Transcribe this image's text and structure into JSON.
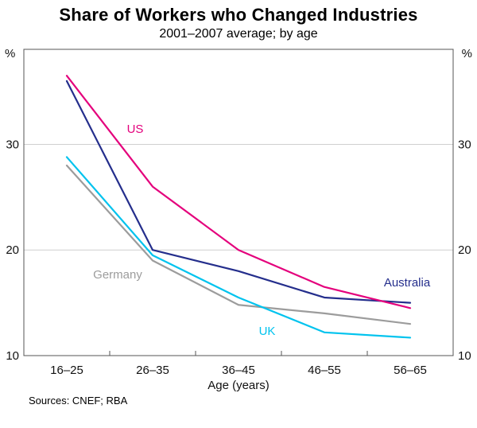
{
  "header": {
    "title": "Share of Workers who Changed Industries",
    "subtitle": "2001–2007 average; by age"
  },
  "chart_data": {
    "type": "line",
    "title": "Share of Workers who Changed Industries",
    "subtitle": "2001–2007 average; by age",
    "xlabel": "Age (years)",
    "unit": "%",
    "categories": [
      "16–25",
      "26–35",
      "36–45",
      "46–55",
      "56–65"
    ],
    "series": [
      {
        "name": "Germany",
        "color": "#9c9c9c",
        "values": [
          28.0,
          19.0,
          14.8,
          14.0,
          13.0
        ]
      },
      {
        "name": "UK",
        "color": "#00c3ee",
        "values": [
          28.8,
          19.5,
          15.5,
          12.2,
          11.7
        ]
      },
      {
        "name": "Australia",
        "color": "#242e8c",
        "values": [
          36.0,
          20.0,
          18.0,
          15.5,
          15.0
        ]
      },
      {
        "name": "US",
        "color": "#e4007c",
        "values": [
          36.5,
          26.0,
          20.0,
          16.5,
          14.5
        ]
      }
    ],
    "yticks": [
      10,
      20,
      30
    ],
    "ylim": [
      10,
      39
    ],
    "grid": true,
    "legend_position": "inline-labels"
  },
  "footer": {
    "sources": "Sources: CNEF; RBA"
  }
}
